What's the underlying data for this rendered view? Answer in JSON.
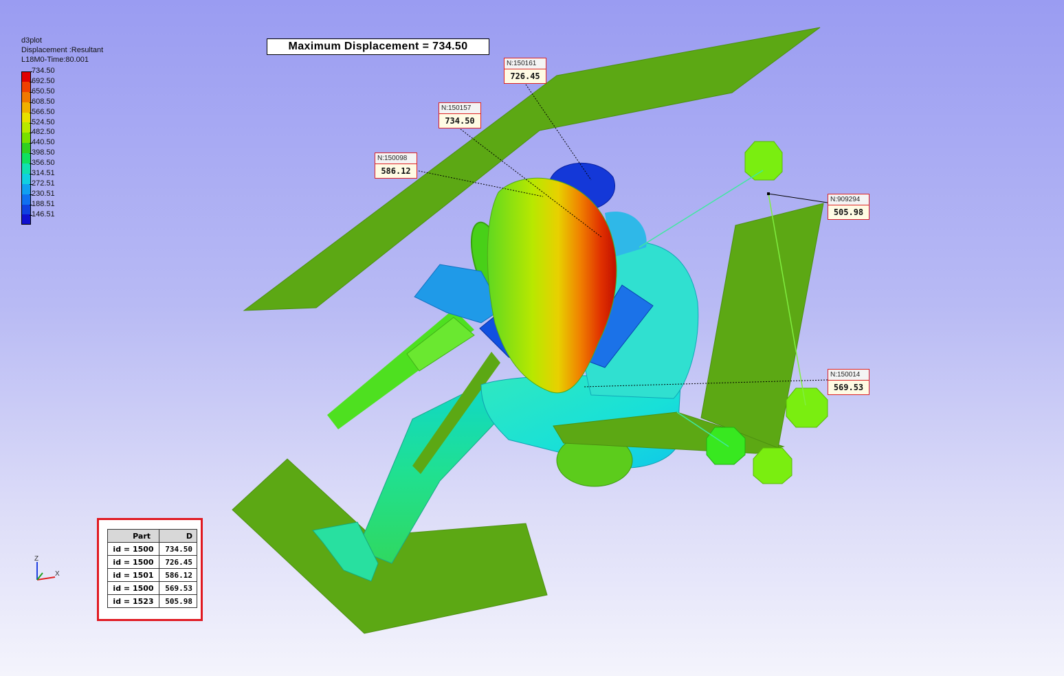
{
  "legend": {
    "title": "d3plot",
    "subtitle": "Displacement :Resultant",
    "state": "L18M0-Time:80.001",
    "ticks": [
      "734.50",
      "692.50",
      "650.50",
      "608.50",
      "566.50",
      "524.50",
      "482.50",
      "440.50",
      "398.50",
      "356.50",
      "314.51",
      "272.51",
      "230.51",
      "188.51",
      "146.51"
    ],
    "colors": [
      "#e00000",
      "#f04000",
      "#f07800",
      "#f0b000",
      "#e8e000",
      "#b8e800",
      "#78e000",
      "#30d020",
      "#10e060",
      "#10e0b0",
      "#10d0e0",
      "#10a0f0",
      "#1070f0",
      "#1040e0",
      "#1010d0"
    ]
  },
  "max_displacement": "Maximum Displacement = 734.50",
  "node_tags": [
    {
      "id": "N:150161",
      "value": "726.45"
    },
    {
      "id": "N:150157",
      "value": "734.50"
    },
    {
      "id": "N:150098",
      "value": "586.12"
    },
    {
      "id": "N:909294",
      "value": "505.98"
    },
    {
      "id": "N:150014",
      "value": "569.53"
    }
  ],
  "part_table": {
    "headers": [
      "Part",
      "D"
    ],
    "rows": [
      [
        "id = 1500",
        "734.50"
      ],
      [
        "id = 1500",
        "726.45"
      ],
      [
        "id = 1501",
        "586.12"
      ],
      [
        "id = 1500",
        "569.53"
      ],
      [
        "id = 1523",
        "505.98"
      ]
    ]
  },
  "axes": {
    "z": "Z",
    "x": "X"
  },
  "colors": {
    "panel_green": "#5ca814",
    "highlight": "#e01820"
  }
}
